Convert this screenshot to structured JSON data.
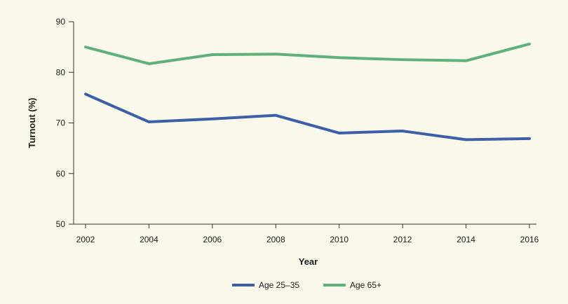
{
  "chart_data": {
    "type": "line",
    "xlabel": "Year",
    "ylabel": "Turnout (%)",
    "ylim": [
      50,
      90
    ],
    "yticks": [
      50,
      60,
      70,
      80,
      90
    ],
    "x": [
      "2002",
      "2004",
      "2006",
      "2008",
      "2010",
      "2012",
      "2014",
      "2016"
    ],
    "grid": false,
    "legend_position": "bottom",
    "series": [
      {
        "name": "Age 25–35",
        "color": "#3d5fa8",
        "values": [
          75.7,
          70.2,
          70.8,
          71.5,
          68.0,
          68.4,
          66.7,
          66.9
        ]
      },
      {
        "name": "Age 65+",
        "color": "#5fb07c",
        "values": [
          85.0,
          81.7,
          83.5,
          83.6,
          82.9,
          82.5,
          82.3,
          85.6
        ]
      }
    ]
  }
}
